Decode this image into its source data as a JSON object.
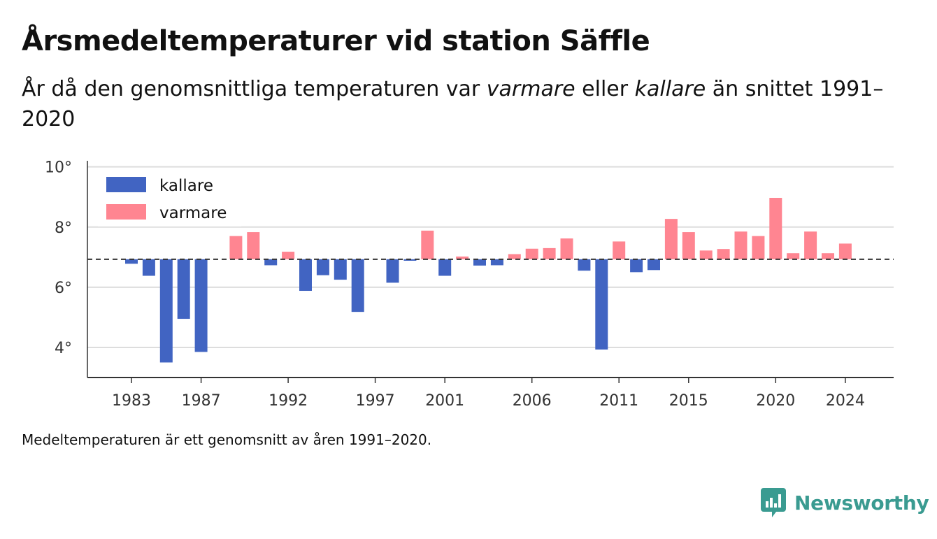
{
  "header": {
    "title": "Årsmedeltemperaturer vid station Säffle",
    "subtitle_pre": "År då den genomsnittliga temperaturen var ",
    "subtitle_warm": "varmare",
    "subtitle_mid": " eller ",
    "subtitle_cold": "kallare",
    "subtitle_post": " än snittet 1991–2020"
  },
  "footnote": "Medeltemperaturen är ett genomsnitt av åren 1991–2020.",
  "brand": {
    "name": "Newsworthy",
    "icon": "newsworthy-logo-icon",
    "color": "#3a9b91"
  },
  "chart_data": {
    "type": "bar",
    "baseline": 6.93,
    "y_tick_values": [
      4,
      6,
      8,
      10
    ],
    "y_tick_labels": [
      "4°",
      "6°",
      "8°",
      "10°"
    ],
    "ylim": [
      3,
      10
    ],
    "x_tick_labels": [
      "1983",
      "1987",
      "1992",
      "1997",
      "2001",
      "2006",
      "2011",
      "2015",
      "2020",
      "2024"
    ],
    "grid": true,
    "legend_position": "top-left",
    "colors": {
      "kallare": "#4164c2",
      "varmare": "#ff8591",
      "baseline": "#333333"
    },
    "series": [
      {
        "name": "kallare",
        "years": [
          1983,
          1984,
          1985,
          1986,
          1987,
          1991,
          1993,
          1994,
          1995,
          1996,
          1998,
          1999,
          2001,
          2003,
          2004,
          2009,
          2010,
          2012,
          2013
        ],
        "values": [
          6.78,
          6.38,
          3.5,
          4.95,
          3.85,
          6.73,
          5.88,
          6.4,
          6.25,
          5.18,
          6.15,
          6.88,
          6.38,
          6.72,
          6.73,
          6.55,
          3.93,
          6.5,
          6.57
        ]
      },
      {
        "name": "varmare",
        "years": [
          1989,
          1990,
          1992,
          2000,
          2002,
          2005,
          2006,
          2007,
          2008,
          2011,
          2014,
          2015,
          2016,
          2017,
          2018,
          2019,
          2020,
          2021,
          2022,
          2023,
          2024
        ],
        "values": [
          7.7,
          7.83,
          7.18,
          7.88,
          7.02,
          7.1,
          7.28,
          7.3,
          7.62,
          7.52,
          8.27,
          7.83,
          7.22,
          7.27,
          7.85,
          7.7,
          8.97,
          7.13,
          7.85,
          7.13,
          7.45
        ]
      }
    ]
  }
}
